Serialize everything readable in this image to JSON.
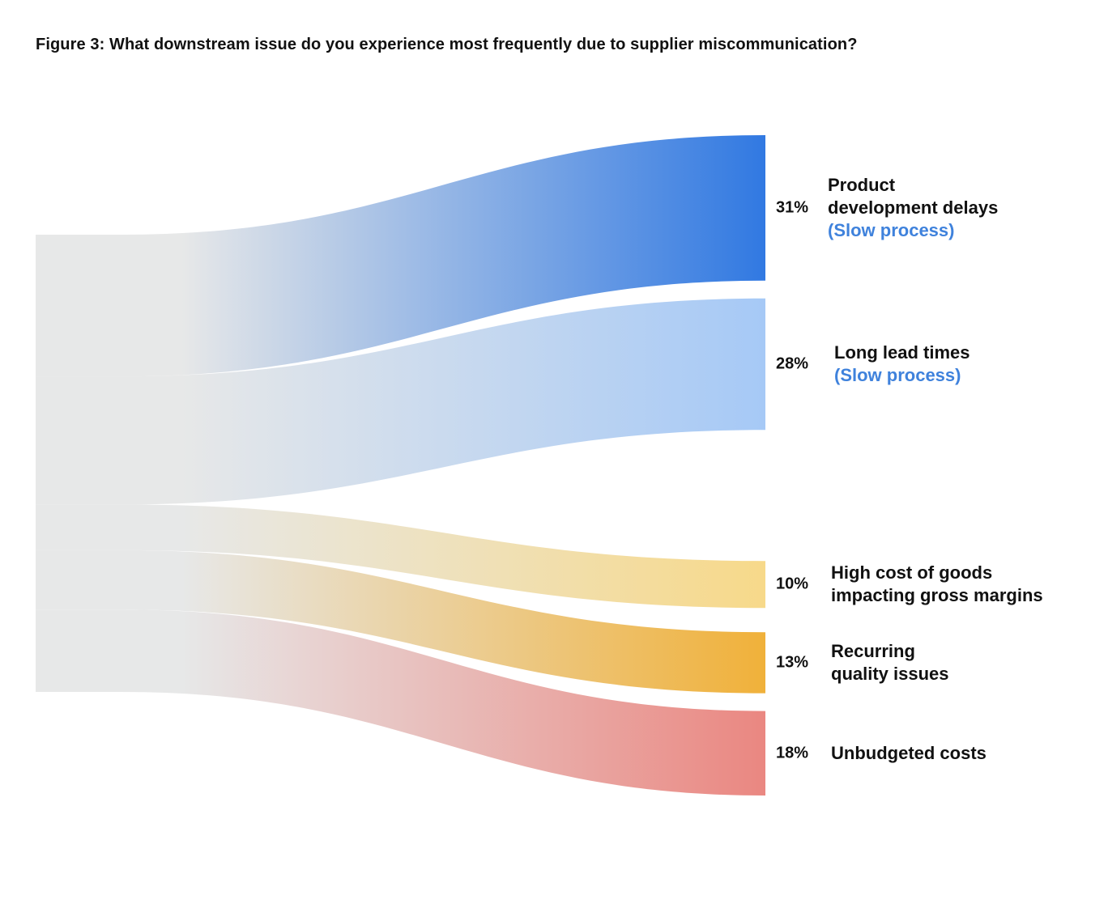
{
  "title": "Figure 3: What downstream issue do you experience most frequently due to supplier miscommunication?",
  "colors": {
    "source": "#e7e8e8",
    "note": "#3f82dc"
  },
  "chart_data": {
    "type": "sankey",
    "unit": "%",
    "flows": [
      {
        "id": "product-development-delays",
        "value": 31,
        "pct_label": "31%",
        "label_lines": [
          "Product",
          "development delays"
        ],
        "note": "(Slow process)",
        "color": "#3179e2"
      },
      {
        "id": "long-lead-times",
        "value": 28,
        "pct_label": "28%",
        "label_lines": [
          "Long lead times"
        ],
        "note": "(Slow process)",
        "color": "#a6c9f6"
      },
      {
        "id": "high-cost-of-goods",
        "value": 10,
        "pct_label": "10%",
        "label_lines": [
          "High cost of goods",
          "impacting gross margins"
        ],
        "note": "",
        "color": "#f7d98a"
      },
      {
        "id": "recurring-quality-issues",
        "value": 13,
        "pct_label": "13%",
        "label_lines": [
          "Recurring",
          "quality issues"
        ],
        "note": "",
        "color": "#f0b13a"
      },
      {
        "id": "unbudgeted-costs",
        "value": 18,
        "pct_label": "18%",
        "label_lines": [
          "Unbudgeted costs"
        ],
        "note": "",
        "color": "#ea8781"
      }
    ]
  }
}
